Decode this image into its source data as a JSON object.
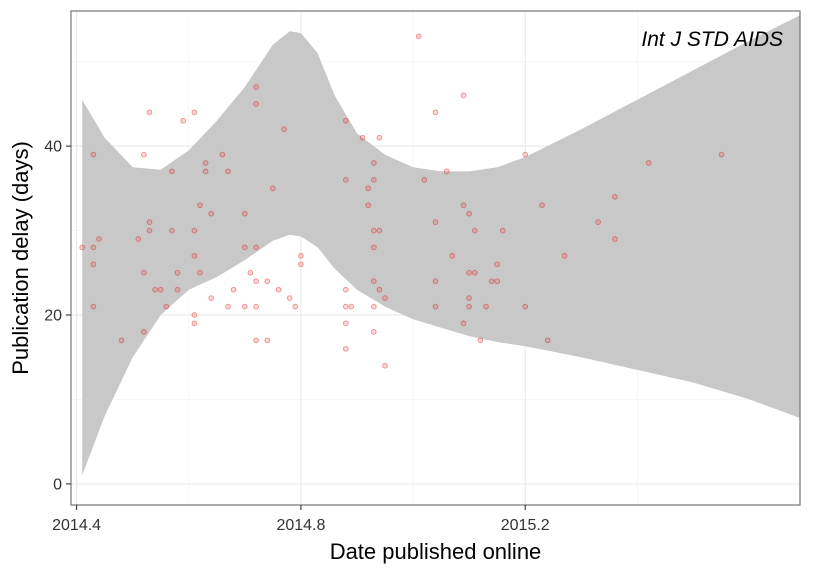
{
  "chart_data": {
    "type": "scatter",
    "annotation": "Int J STD AIDS",
    "xlabel": "Date published online",
    "ylabel": "Publication delay (days)",
    "xlim": [
      2014.39,
      2015.69
    ],
    "ylim": [
      -2.5,
      56
    ],
    "x_ticks": [
      2014.4,
      2014.8,
      2015.2
    ],
    "x_tick_labels": [
      "2014.4",
      "2014.8",
      "2015.2"
    ],
    "y_ticks": [
      0,
      20,
      40
    ],
    "y_tick_labels": [
      "0",
      "20",
      "40"
    ],
    "grid": true,
    "legend": "none",
    "colors": {
      "points": "#e41a1c",
      "band": "#c8c8c8",
      "panel_border": "#7f7f7f",
      "grid_major": "#ebebeb",
      "grid_minor": "#f5f5f5"
    },
    "points": [
      [
        2014.41,
        28
      ],
      [
        2014.43,
        39
      ],
      [
        2014.43,
        28
      ],
      [
        2014.43,
        26
      ],
      [
        2014.43,
        21
      ],
      [
        2014.44,
        29
      ],
      [
        2014.48,
        17
      ],
      [
        2014.51,
        29
      ],
      [
        2014.52,
        39
      ],
      [
        2014.52,
        25
      ],
      [
        2014.52,
        18
      ],
      [
        2014.53,
        44
      ],
      [
        2014.53,
        31
      ],
      [
        2014.53,
        30
      ],
      [
        2014.54,
        23
      ],
      [
        2014.55,
        23
      ],
      [
        2014.56,
        21
      ],
      [
        2014.57,
        37
      ],
      [
        2014.57,
        30
      ],
      [
        2014.58,
        25
      ],
      [
        2014.58,
        23
      ],
      [
        2014.59,
        43
      ],
      [
        2014.61,
        44
      ],
      [
        2014.61,
        30
      ],
      [
        2014.61,
        27
      ],
      [
        2014.61,
        20
      ],
      [
        2014.61,
        19
      ],
      [
        2014.62,
        33
      ],
      [
        2014.62,
        25
      ],
      [
        2014.63,
        38
      ],
      [
        2014.63,
        37
      ],
      [
        2014.64,
        32
      ],
      [
        2014.64,
        22
      ],
      [
        2014.66,
        39
      ],
      [
        2014.67,
        37
      ],
      [
        2014.67,
        21
      ],
      [
        2014.68,
        23
      ],
      [
        2014.7,
        32
      ],
      [
        2014.7,
        28
      ],
      [
        2014.7,
        21
      ],
      [
        2014.71,
        25
      ],
      [
        2014.72,
        47
      ],
      [
        2014.72,
        45
      ],
      [
        2014.72,
        24
      ],
      [
        2014.72,
        28
      ],
      [
        2014.72,
        21
      ],
      [
        2014.72,
        17
      ],
      [
        2014.74,
        24
      ],
      [
        2014.74,
        17
      ],
      [
        2014.75,
        35
      ],
      [
        2014.76,
        23
      ],
      [
        2014.77,
        42
      ],
      [
        2014.78,
        22
      ],
      [
        2014.79,
        21
      ],
      [
        2014.8,
        27
      ],
      [
        2014.8,
        26
      ],
      [
        2014.88,
        43
      ],
      [
        2014.88,
        36
      ],
      [
        2014.88,
        23
      ],
      [
        2014.88,
        21
      ],
      [
        2014.88,
        19
      ],
      [
        2014.88,
        16
      ],
      [
        2014.89,
        21
      ],
      [
        2014.91,
        41
      ],
      [
        2014.92,
        35
      ],
      [
        2014.92,
        33
      ],
      [
        2014.93,
        38
      ],
      [
        2014.93,
        36
      ],
      [
        2014.93,
        30
      ],
      [
        2014.93,
        28
      ],
      [
        2014.93,
        24
      ],
      [
        2014.93,
        21
      ],
      [
        2014.93,
        18
      ],
      [
        2014.94,
        41
      ],
      [
        2014.94,
        30
      ],
      [
        2014.94,
        23
      ],
      [
        2014.95,
        14
      ],
      [
        2014.95,
        22
      ],
      [
        2015.01,
        53
      ],
      [
        2015.02,
        36
      ],
      [
        2015.04,
        44
      ],
      [
        2015.04,
        31
      ],
      [
        2015.04,
        24
      ],
      [
        2015.04,
        21
      ],
      [
        2015.06,
        37
      ],
      [
        2015.07,
        27
      ],
      [
        2015.09,
        46
      ],
      [
        2015.09,
        33
      ],
      [
        2015.09,
        19
      ],
      [
        2015.1,
        32
      ],
      [
        2015.1,
        25
      ],
      [
        2015.1,
        22
      ],
      [
        2015.1,
        21
      ],
      [
        2015.11,
        25
      ],
      [
        2015.11,
        30
      ],
      [
        2015.12,
        17
      ],
      [
        2015.13,
        21
      ],
      [
        2015.14,
        24
      ],
      [
        2015.15,
        26
      ],
      [
        2015.15,
        24
      ],
      [
        2015.16,
        30
      ],
      [
        2015.2,
        39
      ],
      [
        2015.2,
        21
      ],
      [
        2015.23,
        33
      ],
      [
        2015.24,
        17
      ],
      [
        2015.27,
        27
      ],
      [
        2015.33,
        31
      ],
      [
        2015.36,
        34
      ],
      [
        2015.36,
        29
      ],
      [
        2015.42,
        38
      ],
      [
        2015.55,
        39
      ]
    ],
    "band_x": [
      2014.41,
      2014.45,
      2014.5,
      2014.55,
      2014.6,
      2014.65,
      2014.7,
      2014.75,
      2014.78,
      2014.8,
      2014.83,
      2014.86,
      2014.9,
      2014.95,
      2015.0,
      2015.05,
      2015.1,
      2015.15,
      2015.2,
      2015.3,
      2015.4,
      2015.5,
      2015.6,
      2015.69
    ],
    "band_upper": [
      45.5,
      41.0,
      37.5,
      37.2,
      39.5,
      43.0,
      47.0,
      52.0,
      53.6,
      53.4,
      51.0,
      46.0,
      41.5,
      39.0,
      37.5,
      37.0,
      37.0,
      37.5,
      38.7,
      42.0,
      45.5,
      49.0,
      52.5,
      55.5
    ],
    "band_lower": [
      1.0,
      8.0,
      15.0,
      20.0,
      23.0,
      24.5,
      26.5,
      28.8,
      29.5,
      29.3,
      28.0,
      25.5,
      23.0,
      21.0,
      19.5,
      18.5,
      17.5,
      16.8,
      16.3,
      15.0,
      13.5,
      12.0,
      10.0,
      7.8
    ]
  }
}
